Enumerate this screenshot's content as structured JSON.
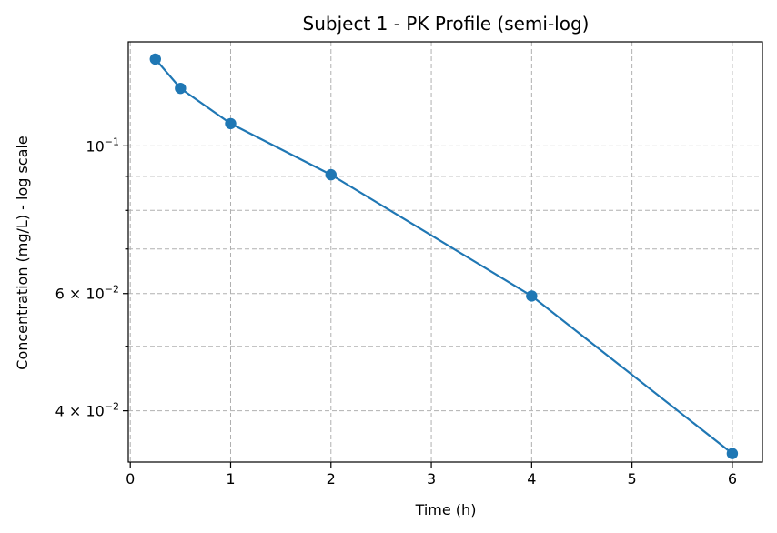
{
  "chart_data": {
    "type": "line",
    "title": "Subject 1 - PK Profile (semi-log)",
    "xlabel": "Time (h)",
    "ylabel": "Concentration (mg/L) - log scale",
    "yscale": "log",
    "xlim": [
      -0.02,
      6.3
    ],
    "ylim": [
      0.0335,
      0.1433
    ],
    "grid": true,
    "x_ticks": [
      0,
      1,
      2,
      3,
      4,
      5,
      6
    ],
    "y_major_ticks": [
      {
        "value": 0.1,
        "base": "10",
        "exp": "−1"
      },
      {
        "value": 0.06,
        "base": "6 × 10",
        "exp": "−2"
      },
      {
        "value": 0.04,
        "base": "4 × 10",
        "exp": "−2"
      }
    ],
    "y_minor_ticks": [
      0.09,
      0.08,
      0.07,
      0.05
    ],
    "series": [
      {
        "color": "#1f77b4",
        "marker": "circle",
        "x": [
          0.25,
          0.5,
          1,
          2,
          4,
          6
        ],
        "y": [
          0.135,
          0.122,
          0.108,
          0.0905,
          0.0595,
          0.0345
        ]
      }
    ]
  }
}
